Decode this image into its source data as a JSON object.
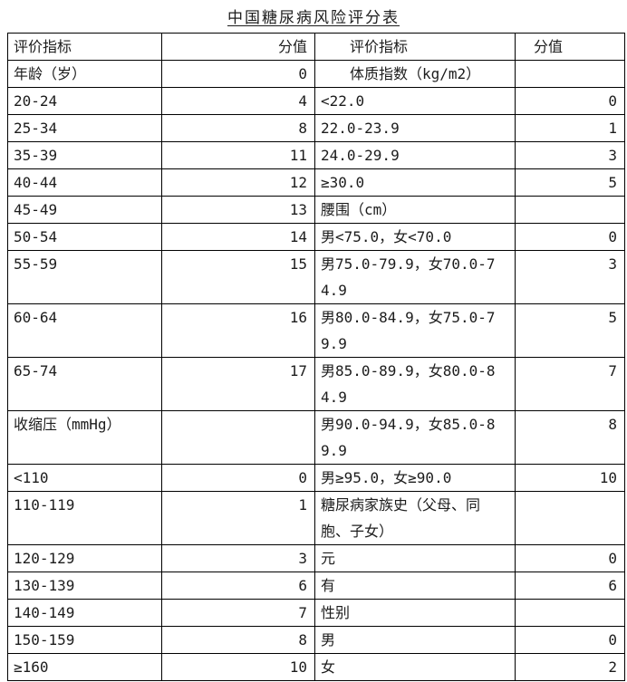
{
  "title": "中国糖尿病风险评分表",
  "colors": {
    "background": "#ffffff",
    "text": "#1c1c1c",
    "border": "#000000"
  },
  "table": {
    "header": {
      "c1": "评价指标",
      "c2": "分值",
      "c3": "评价指标",
      "c4": "分值"
    },
    "rows": [
      {
        "c1": "年龄（岁）",
        "c2": "0",
        "c3": "体质指数（kg/m2）",
        "c4": ""
      },
      {
        "c1": "20-24",
        "c2": "4",
        "c3": "<22.0",
        "c4": "0"
      },
      {
        "c1": "25-34",
        "c2": "8",
        "c3": "22.0-23.9",
        "c4": "1"
      },
      {
        "c1": "35-39",
        "c2": "11",
        "c3": "24.0-29.9",
        "c4": "3"
      },
      {
        "c1": "40-44",
        "c2": "12",
        "c3": "≥30.0",
        "c4": "5"
      },
      {
        "c1": "45-49",
        "c2": "13",
        "c3": "腰围（cm）",
        "c4": ""
      },
      {
        "c1": "50-54",
        "c2": "14",
        "c3": "男<75.0，女<70.0",
        "c4": "0"
      },
      {
        "c1": "55-59",
        "c2": "15",
        "c3": "男75.0-79.9，女70.0-7\n4.9",
        "c4": "3"
      },
      {
        "c1": "60-64",
        "c2": "16",
        "c3": "男80.0-84.9，女75.0-7\n9.9",
        "c4": "5"
      },
      {
        "c1": "65-74",
        "c2": "17",
        "c3": "男85.0-89.9，女80.0-8\n4.9",
        "c4": "7"
      },
      {
        "c1": "收缩压（mmHg）",
        "c2": "",
        "c3": "男90.0-94.9，女85.0-8\n9.9",
        "c4": "8"
      },
      {
        "c1": "<110",
        "c2": "0",
        "c3": "男≥95.0，女≥90.0",
        "c4": "10"
      },
      {
        "c1": "110-119",
        "c2": "1",
        "c3": "糖尿病家族史（父母、同\n胞、子女）",
        "c4": ""
      },
      {
        "c1": "120-129",
        "c2": "3",
        "c3": "元",
        "c4": "0"
      },
      {
        "c1": "130-139",
        "c2": "6",
        "c3": "有",
        "c4": "6"
      },
      {
        "c1": "140-149",
        "c2": "7",
        "c3": "性别",
        "c4": ""
      },
      {
        "c1": "150-159",
        "c2": "8",
        "c3": "男",
        "c4": "0"
      },
      {
        "c1": "≥160",
        "c2": "10",
        "c3": "女",
        "c4": "2"
      }
    ]
  }
}
